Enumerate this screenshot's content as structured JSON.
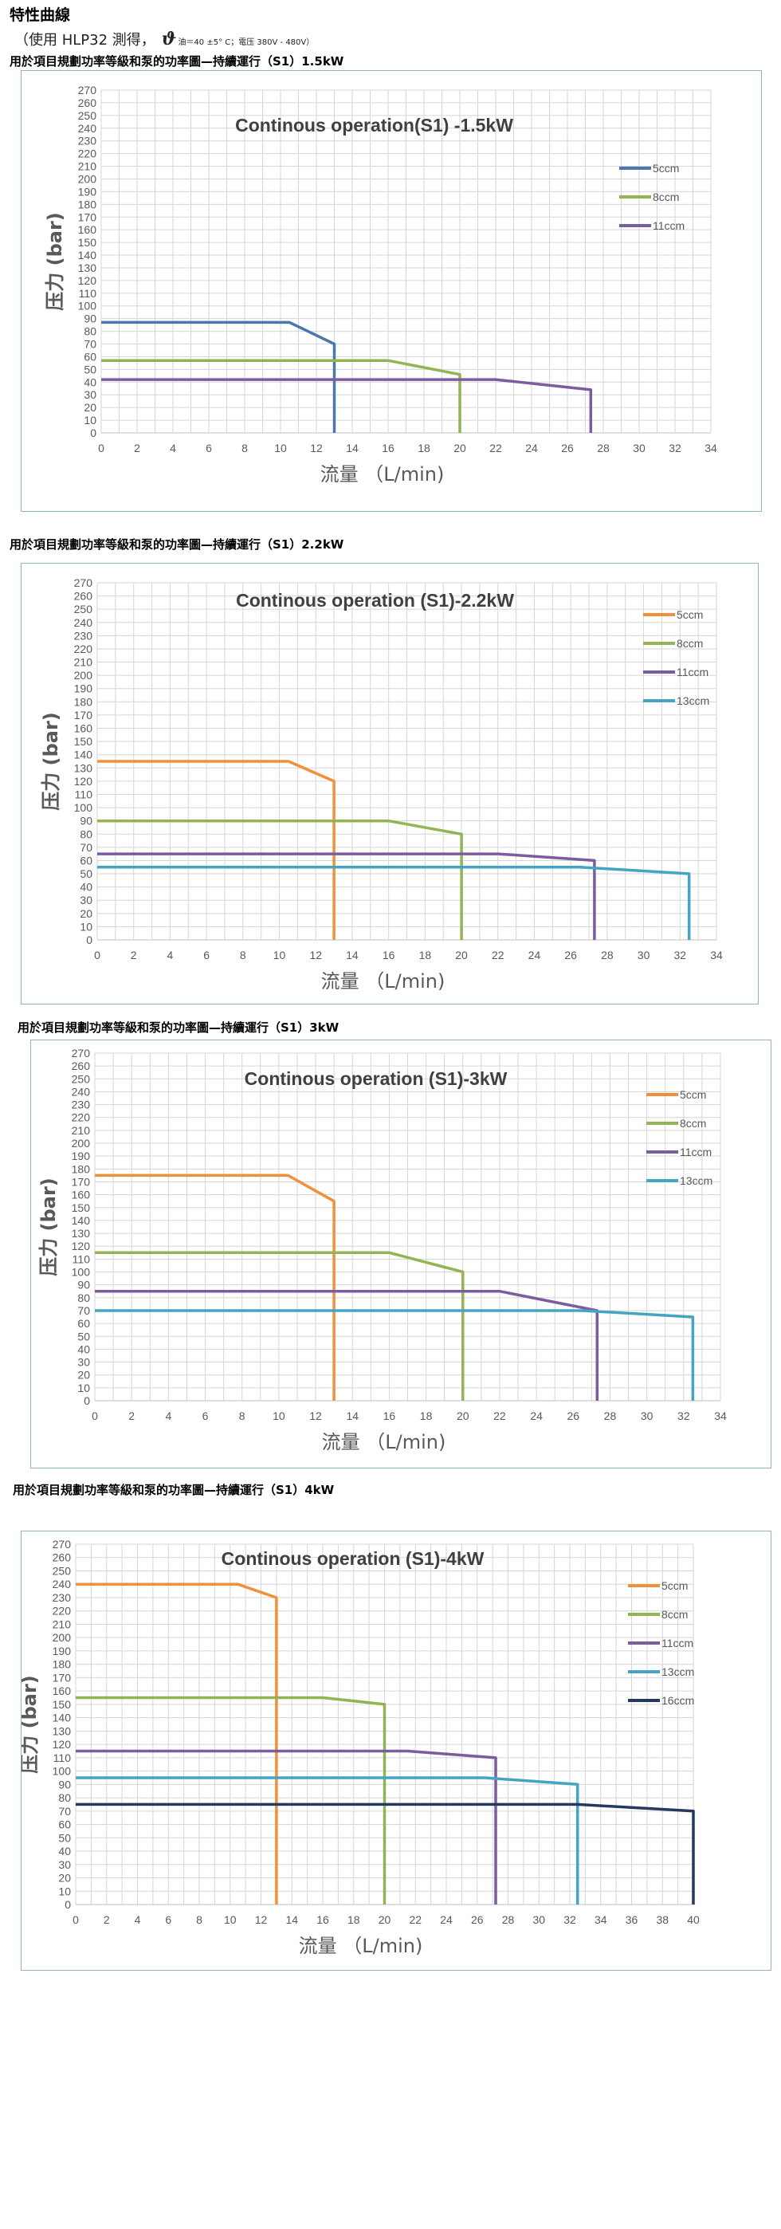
{
  "page": {
    "heading": "特性曲線",
    "note_prefix": "（使用 HLP32 測得，",
    "note_theta": "ϑ",
    "note_suffix": "油＝40 ±5° C；電压 380V - 480V）"
  },
  "colors": {
    "5ccm_a": "#4a78ad",
    "5ccm_b": "#f0903a",
    "8ccm": "#93b452",
    "11ccm": "#7b5c9c",
    "13ccm": "#43a5c2",
    "16ccm": "#23395e",
    "grid": "#d6d6d6",
    "frame": "#8fb6b2"
  },
  "chart_data": [
    {
      "caption": "用於項目規劃功率等級和泵的功率圖—持續運行（S1）1.5kW",
      "type": "line",
      "title": "Continous operation(S1) -1.5kW",
      "xlabel": "流量 （L/min)",
      "ylabel": "压力 (bar)",
      "xlim": [
        0,
        34
      ],
      "ylim": [
        0,
        270
      ],
      "xticks": [
        0,
        2,
        4,
        6,
        8,
        10,
        12,
        14,
        16,
        18,
        20,
        22,
        24,
        26,
        28,
        30,
        32,
        34
      ],
      "ystep": 10,
      "legend_position": "top-right",
      "series": [
        {
          "name": "5ccm",
          "color": "#4a78ad",
          "x": [
            0,
            10.5,
            13,
            13
          ],
          "y": [
            87,
            87,
            70,
            0
          ]
        },
        {
          "name": "8ccm",
          "color": "#93b452",
          "x": [
            0,
            16,
            20,
            20
          ],
          "y": [
            57,
            57,
            46,
            0
          ]
        },
        {
          "name": "11ccm",
          "color": "#7b5c9c",
          "x": [
            0,
            22,
            27.3,
            27.3
          ],
          "y": [
            42,
            42,
            34,
            0
          ]
        }
      ]
    },
    {
      "caption": "用於項目規劃功率等級和泵的功率圖—持續運行（S1）2.2kW",
      "type": "line",
      "title": "Continous operation (S1)-2.2kW",
      "xlabel": "流量 （L/min)",
      "ylabel": "压力 (bar)",
      "xlim": [
        0,
        34
      ],
      "ylim": [
        0,
        270
      ],
      "xticks": [
        0,
        2,
        4,
        6,
        8,
        10,
        12,
        14,
        16,
        18,
        20,
        22,
        24,
        26,
        28,
        30,
        32,
        34
      ],
      "ystep": 10,
      "legend_position": "top-right",
      "series": [
        {
          "name": "5ccm",
          "color": "#f0903a",
          "x": [
            0,
            10.5,
            13,
            13
          ],
          "y": [
            135,
            135,
            120,
            0
          ]
        },
        {
          "name": "8ccm",
          "color": "#93b452",
          "x": [
            0,
            16,
            20,
            20
          ],
          "y": [
            90,
            90,
            80,
            0
          ]
        },
        {
          "name": "11ccm",
          "color": "#7b5c9c",
          "x": [
            0,
            22,
            27.3,
            27.3
          ],
          "y": [
            65,
            65,
            60,
            0
          ]
        },
        {
          "name": "13ccm",
          "color": "#43a5c2",
          "x": [
            0,
            26.5,
            32.5,
            32.5
          ],
          "y": [
            55,
            55,
            50,
            0
          ]
        }
      ]
    },
    {
      "caption": "用於項目規劃功率等級和泵的功率圖—持續運行（S1）3kW",
      "type": "line",
      "title": "Continous operation (S1)-3kW",
      "xlabel": "流量 （L/min)",
      "ylabel": "压力 (bar)",
      "xlim": [
        0,
        34
      ],
      "ylim": [
        0,
        270
      ],
      "xticks": [
        0,
        2,
        4,
        6,
        8,
        10,
        12,
        14,
        16,
        18,
        20,
        22,
        24,
        26,
        28,
        30,
        32,
        34
      ],
      "ystep": 10,
      "legend_position": "top-right",
      "series": [
        {
          "name": "5ccm",
          "color": "#f0903a",
          "x": [
            0,
            10.5,
            13,
            13
          ],
          "y": [
            175,
            175,
            155,
            0
          ]
        },
        {
          "name": "8ccm",
          "color": "#93b452",
          "x": [
            0,
            16,
            20,
            20
          ],
          "y": [
            115,
            115,
            100,
            0
          ]
        },
        {
          "name": "11ccm",
          "color": "#7b5c9c",
          "x": [
            0,
            22,
            27.3,
            27.3
          ],
          "y": [
            85,
            85,
            70,
            0
          ]
        },
        {
          "name": "13ccm",
          "color": "#43a5c2",
          "x": [
            0,
            26.5,
            32.5,
            32.5
          ],
          "y": [
            70,
            70,
            65,
            0
          ]
        }
      ]
    },
    {
      "caption": "用於項目規劃功率等級和泵的功率圖—持續運行（S1）4kW",
      "type": "line",
      "title": "Continous operation (S1)-4kW",
      "xlabel": "流量 （L/min)",
      "ylabel": "压力 (bar)",
      "xlim": [
        0,
        40
      ],
      "ylim": [
        0,
        270
      ],
      "xticks": [
        0,
        2,
        4,
        6,
        8,
        10,
        12,
        14,
        16,
        18,
        20,
        22,
        24,
        26,
        28,
        30,
        32,
        34,
        36,
        38,
        40
      ],
      "ystep": 10,
      "legend_position": "top-right",
      "series": [
        {
          "name": "5ccm",
          "color": "#f0903a",
          "x": [
            0,
            10.5,
            13,
            13
          ],
          "y": [
            240,
            240,
            230,
            0
          ]
        },
        {
          "name": "8ccm",
          "color": "#93b452",
          "x": [
            0,
            16,
            20,
            20
          ],
          "y": [
            155,
            155,
            150,
            0
          ]
        },
        {
          "name": "11ccm",
          "color": "#7b5c9c",
          "x": [
            0,
            21.5,
            27.2,
            27.2
          ],
          "y": [
            115,
            115,
            110,
            0
          ]
        },
        {
          "name": "13ccm",
          "color": "#43a5c2",
          "x": [
            0,
            26.5,
            32.5,
            32.5
          ],
          "y": [
            95,
            95,
            90,
            0
          ]
        },
        {
          "name": "16ccm",
          "color": "#23395e",
          "x": [
            0,
            32.5,
            40,
            40
          ],
          "y": [
            75,
            75,
            70,
            0
          ]
        }
      ]
    }
  ]
}
